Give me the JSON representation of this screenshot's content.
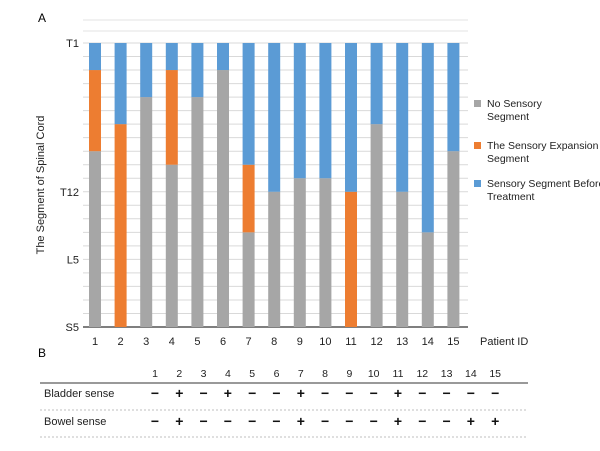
{
  "panel_a_label": "A",
  "panel_b_label": "B",
  "chart_data": {
    "type": "bar",
    "stacked": true,
    "title": "",
    "xlabel": "Patient ID",
    "ylabel": "The Segment of Spinal Cord",
    "categories": [
      "1",
      "2",
      "3",
      "4",
      "5",
      "6",
      "7",
      "8",
      "9",
      "10",
      "11",
      "12",
      "13",
      "14",
      "15"
    ],
    "y_axis": {
      "unit": "spinal cord segment",
      "direction": "T1 at top, S5 at bottom",
      "range": [
        "T1",
        "S5"
      ],
      "tick_labels": [
        "T1",
        "T12",
        "L5",
        "S5"
      ],
      "gridlines": "one per segment",
      "grid": true
    },
    "series": [
      {
        "name": "No Sensory Segment",
        "color": "#a6a6a6",
        "upper_boundary": [
          "T9",
          "S5",
          "T5",
          "T10",
          "T5",
          "T3",
          "L3",
          "T12",
          "T11",
          "T11",
          "S5",
          "T7",
          "T12",
          "L3",
          "T9"
        ]
      },
      {
        "name": "The Sensory Expansion Segment",
        "color": "#ed7d31",
        "upper_boundary": [
          "T3",
          "T7",
          null,
          "T3",
          null,
          null,
          "T10",
          null,
          null,
          null,
          "T12",
          null,
          null,
          null,
          null
        ]
      },
      {
        "name": "Sensory Segment Before Treatment",
        "color": "#5b9bd5",
        "upper_boundary": [
          "T1",
          "T1",
          "T1",
          "T1",
          "T1",
          "T1",
          "T1",
          "T1",
          "T1",
          "T1",
          "T1",
          "T1",
          "T1",
          "T1",
          "T1"
        ]
      }
    ],
    "legend_position": "right"
  },
  "table": {
    "columns": [
      "1",
      "2",
      "3",
      "4",
      "5",
      "6",
      "7",
      "8",
      "9",
      "10",
      "11",
      "12",
      "13",
      "14",
      "15"
    ],
    "rows": [
      {
        "label": "Bladder sense",
        "values": [
          "−",
          "+",
          "−",
          "+",
          "−",
          "−",
          "+",
          "−",
          "−",
          "−",
          "+",
          "−",
          "−",
          "−",
          "−"
        ]
      },
      {
        "label": "Bowel sense",
        "values": [
          "−",
          "+",
          "−",
          "−",
          "−",
          "−",
          "+",
          "−",
          "−",
          "−",
          "+",
          "−",
          "−",
          "+",
          "+"
        ]
      }
    ]
  }
}
